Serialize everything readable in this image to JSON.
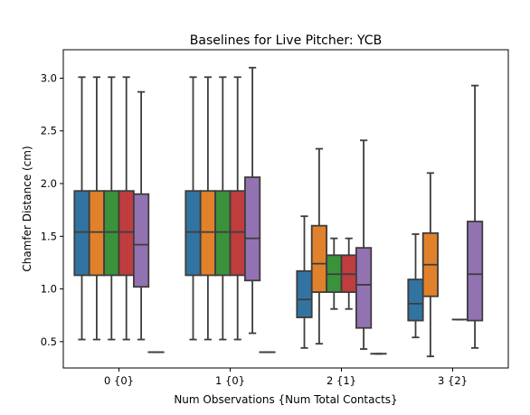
{
  "chart_data": {
    "type": "box",
    "title": "Baselines for Live Pitcher: YCB",
    "xlabel": "Num Observations {Num Total Contacts}",
    "ylabel": "Chamfer Distance (cm)",
    "ylim": [
      0.25,
      3.27
    ],
    "yticks": [
      0.5,
      1.0,
      1.5,
      2.0,
      2.5,
      3.0
    ],
    "ytick_labels": [
      "0.5",
      "1.0",
      "1.5",
      "2.0",
      "2.5",
      "3.0"
    ],
    "grid": false,
    "legend": "none",
    "categories": [
      "0 {0}",
      "1 {0}",
      "2 {1}",
      "3 {2}"
    ],
    "series": [
      {
        "color": "#3274a1",
        "stats": [
          {
            "whislo": 0.52,
            "q1": 1.13,
            "med": 1.54,
            "q3": 1.93,
            "whishi": 3.01
          },
          {
            "whislo": 0.52,
            "q1": 1.13,
            "med": 1.54,
            "q3": 1.93,
            "whishi": 3.01
          },
          {
            "whislo": 0.44,
            "q1": 0.73,
            "med": 0.9,
            "q3": 1.17,
            "whishi": 1.69
          },
          {
            "whislo": 0.54,
            "q1": 0.7,
            "med": 0.86,
            "q3": 1.09,
            "whishi": 1.52
          }
        ]
      },
      {
        "color": "#e1812c",
        "stats": [
          {
            "whislo": 0.52,
            "q1": 1.13,
            "med": 1.54,
            "q3": 1.93,
            "whishi": 3.01
          },
          {
            "whislo": 0.52,
            "q1": 1.13,
            "med": 1.54,
            "q3": 1.93,
            "whishi": 3.01
          },
          {
            "whislo": 0.48,
            "q1": 0.97,
            "med": 1.24,
            "q3": 1.6,
            "whishi": 2.33
          },
          {
            "whislo": 0.36,
            "q1": 0.93,
            "med": 1.23,
            "q3": 1.53,
            "whishi": 2.1
          }
        ]
      },
      {
        "color": "#3a923a",
        "stats": [
          {
            "whislo": 0.52,
            "q1": 1.13,
            "med": 1.54,
            "q3": 1.93,
            "whishi": 3.01
          },
          {
            "whislo": 0.52,
            "q1": 1.13,
            "med": 1.54,
            "q3": 1.93,
            "whishi": 3.01
          },
          {
            "whislo": 0.81,
            "q1": 0.97,
            "med": 1.14,
            "q3": 1.32,
            "whishi": 1.48
          },
          null
        ]
      },
      {
        "color": "#c03d3e",
        "stats": [
          {
            "whislo": 0.52,
            "q1": 1.13,
            "med": 1.54,
            "q3": 1.93,
            "whishi": 3.01
          },
          {
            "whislo": 0.52,
            "q1": 1.13,
            "med": 1.54,
            "q3": 1.93,
            "whishi": 3.01
          },
          {
            "whislo": 0.81,
            "q1": 0.97,
            "med": 1.14,
            "q3": 1.32,
            "whishi": 1.48
          },
          {
            "whislo": 0.71,
            "q1": 0.71,
            "med": 0.71,
            "q3": 0.71,
            "whishi": 0.71
          }
        ]
      },
      {
        "color": "#9372b2",
        "stats": [
          {
            "whislo": 0.52,
            "q1": 1.02,
            "med": 1.42,
            "q3": 1.9,
            "whishi": 2.87
          },
          {
            "whislo": 0.58,
            "q1": 1.08,
            "med": 1.48,
            "q3": 2.06,
            "whishi": 3.1
          },
          {
            "whislo": 0.43,
            "q1": 0.63,
            "med": 1.04,
            "q3": 1.39,
            "whishi": 2.41
          },
          {
            "whislo": 0.44,
            "q1": 0.7,
            "med": 1.14,
            "q3": 1.64,
            "whishi": 2.93
          }
        ]
      },
      {
        "color": "#845b53",
        "stats": [
          {
            "whislo": 0.4,
            "q1": 0.4,
            "med": 0.4,
            "q3": 0.4,
            "whishi": 0.4
          },
          {
            "whislo": 0.4,
            "q1": 0.4,
            "med": 0.4,
            "q3": 0.4,
            "whishi": 0.4
          },
          {
            "whislo": 0.385,
            "q1": 0.385,
            "med": 0.385,
            "q3": 0.385,
            "whishi": 0.385
          },
          null
        ]
      }
    ]
  }
}
